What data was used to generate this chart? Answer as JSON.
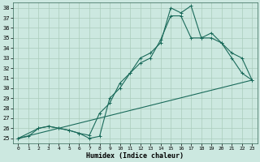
{
  "xlabel": "Humidex (Indice chaleur)",
  "bg_color": "#cce8e0",
  "grid_color": "#aaccbb",
  "line_color": "#1a6a5a",
  "xlim": [
    -0.5,
    23.5
  ],
  "ylim": [
    24.5,
    38.5
  ],
  "xticks": [
    0,
    1,
    2,
    3,
    4,
    5,
    6,
    7,
    8,
    9,
    10,
    11,
    12,
    13,
    14,
    15,
    16,
    17,
    18,
    19,
    20,
    21,
    22,
    23
  ],
  "yticks": [
    25,
    26,
    27,
    28,
    29,
    30,
    31,
    32,
    33,
    34,
    35,
    36,
    37,
    38
  ],
  "line1_x": [
    0,
    1,
    2,
    3,
    4,
    5,
    6,
    7,
    8,
    9,
    10,
    11,
    12,
    13,
    14,
    15,
    16,
    17,
    18,
    19,
    20,
    21,
    22,
    23
  ],
  "line1_y": [
    25,
    25.2,
    26,
    26.2,
    26.0,
    25.8,
    25.5,
    25.0,
    25.2,
    29.0,
    30.0,
    31.5,
    33.0,
    33.5,
    34.5,
    38.0,
    37.5,
    38.2,
    35.0,
    35.5,
    34.5,
    33.5,
    33.0,
    30.8
  ],
  "line2_x": [
    0,
    2,
    3,
    4,
    5,
    6,
    7,
    8,
    9,
    10,
    11,
    12,
    13,
    14,
    15,
    16,
    17,
    18,
    19,
    20,
    21,
    22,
    23
  ],
  "line2_y": [
    25,
    26,
    26.2,
    26.0,
    25.8,
    25.5,
    25.3,
    27.5,
    28.5,
    30.5,
    31.5,
    32.5,
    33.0,
    34.8,
    37.2,
    37.2,
    35.0,
    35.0,
    35.0,
    34.5,
    33.0,
    31.5,
    30.8
  ],
  "line3_x": [
    0,
    23
  ],
  "line3_y": [
    25,
    30.8
  ]
}
